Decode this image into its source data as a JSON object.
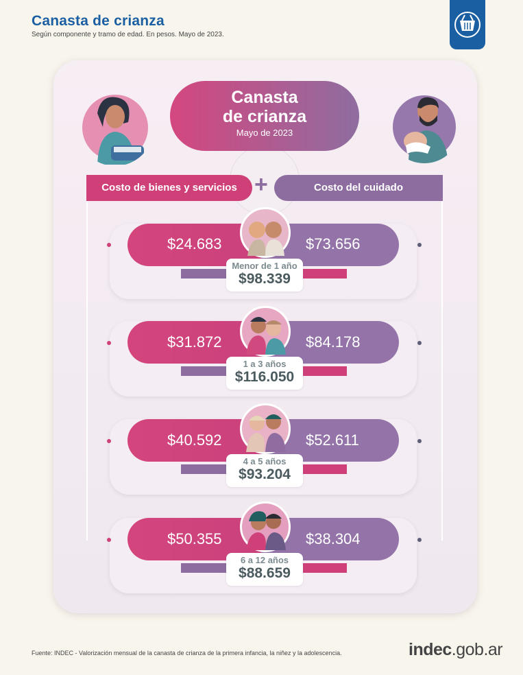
{
  "header": {
    "title": "Canasta de crianza",
    "subtitle": "Según componente y tramo de edad. En pesos. Mayo de 2023."
  },
  "center": {
    "title_line1": "Canasta",
    "title_line2": "de crianza",
    "date": "Mayo de 2023",
    "left_label": "Costo de bienes y servicios",
    "plus": "+",
    "right_label": "Costo del cuidado"
  },
  "rows": [
    {
      "bienes": "$24.683",
      "cuidado": "$73.656",
      "age": "Menor de 1 año",
      "total": "$98.339"
    },
    {
      "bienes": "$31.872",
      "cuidado": "$84.178",
      "age": "1 a 3 años",
      "total": "$116.050"
    },
    {
      "bienes": "$40.592",
      "cuidado": "$52.611",
      "age": "4 a 5 años",
      "total": "$93.204"
    },
    {
      "bienes": "$50.355",
      "cuidado": "$38.304",
      "age": "6 a 12 años",
      "total": "$88.659"
    }
  ],
  "footer": {
    "source": "Fuente: INDEC - Valorización mensual de la canasta de crianza de la primera infancia, la niñez y la adolescencia.",
    "brand_bold": "indec",
    "brand_rest": ".gob.ar"
  },
  "colors": {
    "pink": "#cf4079",
    "purple": "#8d6d9f",
    "title_blue": "#1b5fa3",
    "background": "#f8f5ec"
  },
  "icons": {
    "logo": "basket-icon",
    "mother": "mother-illustration",
    "father": "father-illustration"
  }
}
